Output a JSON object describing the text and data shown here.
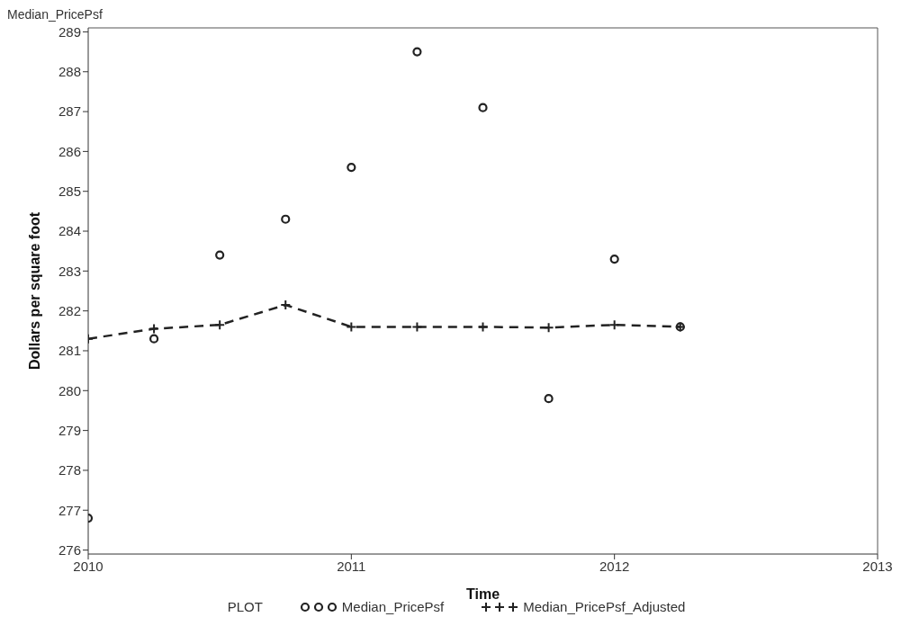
{
  "chart_data": {
    "type": "scatter",
    "xlabel": "Time",
    "ylabel": "Dollars per square foot",
    "legend_title": "PLOT",
    "annotations": [
      "Median_PricePsf"
    ],
    "x": [
      2010,
      2010.25,
      2010.5,
      2010.75,
      2011,
      2011.25,
      2011.5,
      2011.75,
      2012,
      2012.25
    ],
    "series": [
      {
        "name": "Median_PricePsf",
        "color": "#222222",
        "marker": "circle",
        "values": [
          276.8,
          281.3,
          283.4,
          284.3,
          285.6,
          288.5,
          287.1,
          279.8,
          283.3,
          281.6
        ]
      },
      {
        "name": "Median_PricePsf_Adjusted",
        "type": "line",
        "color": "#222222",
        "marker": "cross",
        "line_style": "dashed",
        "values": [
          281.3,
          281.55,
          281.65,
          282.15,
          281.6,
          281.6,
          281.6,
          281.58,
          281.65,
          281.6
        ]
      }
    ],
    "xlim": [
      2010,
      2013
    ],
    "xticks": [
      2010,
      2011,
      2012,
      2013
    ],
    "ylim": [
      275.9,
      289.1
    ],
    "yticks": [
      276,
      277,
      278,
      279,
      280,
      281,
      282,
      283,
      284,
      285,
      286,
      287,
      288,
      289
    ],
    "grid": false,
    "legend": "bottom"
  }
}
